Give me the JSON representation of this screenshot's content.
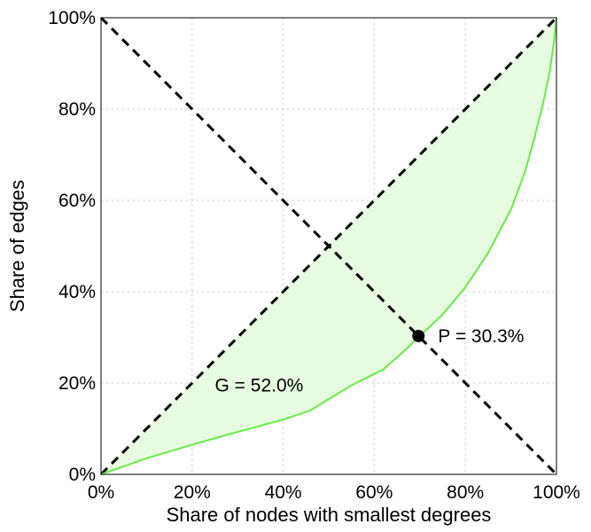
{
  "chart_data": {
    "type": "line",
    "xlabel": "Share of nodes with smallest degrees",
    "ylabel": "Share of edges",
    "xlim": [
      0,
      100
    ],
    "ylim": [
      0,
      100
    ],
    "x_ticks": [
      "0%",
      "20%",
      "40%",
      "60%",
      "80%",
      "100%"
    ],
    "y_ticks": [
      "0%",
      "20%",
      "40%",
      "60%",
      "80%",
      "100%"
    ],
    "x_tick_values": [
      0,
      20,
      40,
      60,
      80,
      100
    ],
    "y_tick_values": [
      0,
      20,
      40,
      60,
      80,
      100
    ],
    "grid": true,
    "lorenz_curve": {
      "x": [
        0,
        10,
        20,
        30,
        40,
        46,
        50,
        55,
        62,
        66,
        70,
        75,
        80,
        85,
        90,
        93,
        95,
        97,
        98.5,
        99.5,
        100
      ],
      "y": [
        0,
        3.5,
        6.5,
        9.3,
        12.0,
        14.0,
        16.5,
        19.5,
        23.0,
        26.5,
        30.3,
        35.0,
        41.0,
        48.5,
        58.0,
        66.0,
        73.0,
        81.0,
        88.0,
        95.0,
        100.0
      ],
      "color": "#66ee44",
      "fill": "#e6fbe0"
    },
    "reference_lines": [
      {
        "x": [
          0,
          100
        ],
        "y": [
          0,
          100
        ],
        "style": "dashed",
        "color": "#000000"
      },
      {
        "x": [
          0,
          100
        ],
        "y": [
          100,
          0
        ],
        "style": "dashed",
        "color": "#000000"
      }
    ],
    "marker": {
      "x": 69.7,
      "y": 30.3,
      "color": "#000000"
    },
    "annotations": [
      {
        "text": "P = 30.3%",
        "x": 74,
        "y": 30.3
      },
      {
        "text": "G = 52.0%",
        "x": 25,
        "y": 19.5
      }
    ]
  }
}
